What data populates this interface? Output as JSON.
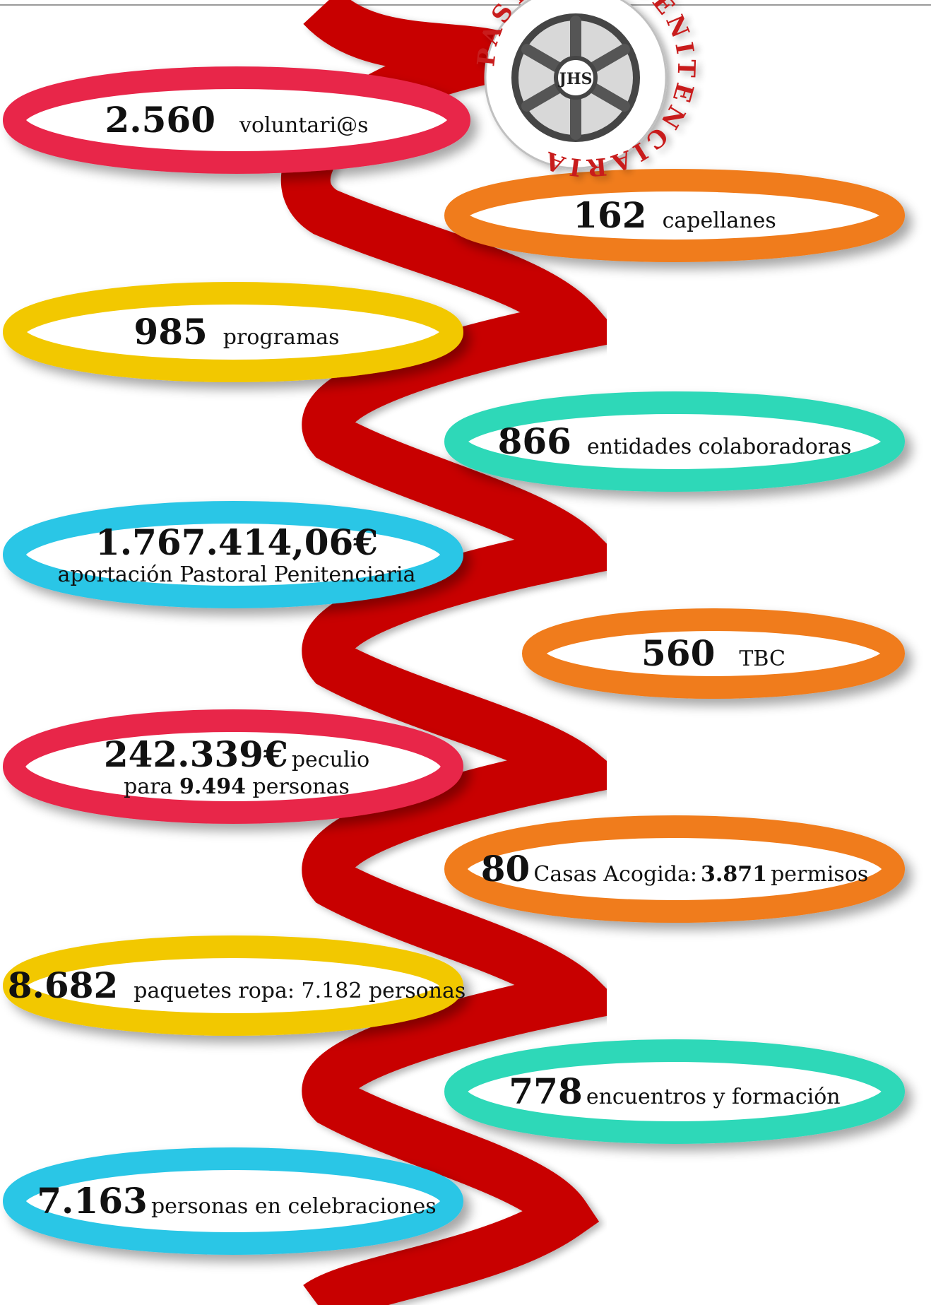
{
  "colors": {
    "ribbon": "#c80000",
    "red": "#e8264a",
    "orange": "#f07b1a",
    "yellow": "#f2c800",
    "teal": "#2ed8b8",
    "cyan": "#2cc6e6"
  },
  "logo": {
    "ring_text": "PASTORAL PENITENCIARIA",
    "hub_text": "JHS"
  },
  "stats": [
    {
      "id": "voluntarios",
      "number": "2.560",
      "label": "voluntari@s",
      "color": "red"
    },
    {
      "id": "capellanes",
      "number": "162",
      "label": "capellanes",
      "color": "orange"
    },
    {
      "id": "programas",
      "number": "985",
      "label": "programas",
      "color": "yellow"
    },
    {
      "id": "entidades",
      "number": "866",
      "label": "entidades colaboradoras",
      "color": "teal"
    },
    {
      "id": "aportacion",
      "number": "1.767.414,06€",
      "label": "aportación Pastoral Penitenciaria",
      "color": "cyan"
    },
    {
      "id": "tbc",
      "number": "560",
      "label": "TBC",
      "color": "orange"
    },
    {
      "id": "peculio",
      "number": "242.339€",
      "label": "peculio",
      "line2_pre": "para",
      "line2_bold": "9.494",
      "line2_post": "personas",
      "color": "red"
    },
    {
      "id": "casas",
      "number": "80",
      "label": "Casas Acogida:",
      "bold": "3.871",
      "label2": "permisos",
      "color": "orange"
    },
    {
      "id": "ropa",
      "number": "8.682",
      "label": "paquetes ropa: 7.182 personas",
      "color": "yellow"
    },
    {
      "id": "encuentros",
      "number": "778",
      "label": "encuentros y formación",
      "color": "teal"
    },
    {
      "id": "celebraciones",
      "number": "7.163",
      "label": "personas en celebraciones",
      "color": "cyan"
    }
  ]
}
